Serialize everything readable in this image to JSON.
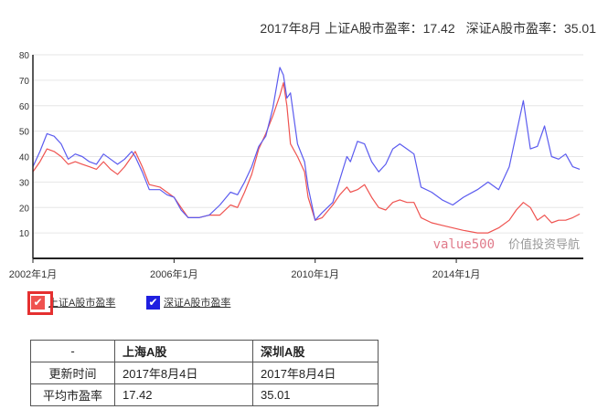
{
  "headline": {
    "sh_text": "2017年8月 上证A股市盈率：17.42",
    "sz_text": "深证A股市盈率：35.01"
  },
  "chart_data": {
    "type": "line",
    "x_ticks": [
      "2002年1月",
      "2006年1月",
      "2010年1月",
      "2014年1月"
    ],
    "x_tick_years": [
      2002,
      2006,
      2010,
      2014
    ],
    "xlim": [
      2002.0,
      2017.6
    ],
    "ylim": [
      0,
      80
    ],
    "y_ticks": [
      10,
      20,
      30,
      40,
      50,
      60,
      70,
      80
    ],
    "watermark_brand": "value500",
    "watermark_text": "价值投资导航",
    "colors": {
      "sh": "#ef5350",
      "sz": "#5b5bef",
      "axis": "#222222",
      "grid": "#e6e6e6"
    },
    "series": [
      {
        "name": "上证A股市盈率",
        "key": "sh",
        "points": [
          [
            2002.0,
            34
          ],
          [
            2002.2,
            38
          ],
          [
            2002.4,
            43
          ],
          [
            2002.6,
            42
          ],
          [
            2002.8,
            40
          ],
          [
            2003.0,
            37
          ],
          [
            2003.2,
            38
          ],
          [
            2003.4,
            37
          ],
          [
            2003.6,
            36
          ],
          [
            2003.8,
            35
          ],
          [
            2004.0,
            38
          ],
          [
            2004.2,
            35
          ],
          [
            2004.4,
            33
          ],
          [
            2004.6,
            36
          ],
          [
            2004.8,
            40
          ],
          [
            2004.9,
            42
          ],
          [
            2005.1,
            36
          ],
          [
            2005.3,
            29
          ],
          [
            2005.6,
            28
          ],
          [
            2005.8,
            26
          ],
          [
            2006.0,
            24
          ],
          [
            2006.2,
            20
          ],
          [
            2006.4,
            16
          ],
          [
            2006.7,
            16
          ],
          [
            2007.0,
            17
          ],
          [
            2007.3,
            17
          ],
          [
            2007.6,
            21
          ],
          [
            2007.8,
            20
          ],
          [
            2008.0,
            26
          ],
          [
            2008.2,
            33
          ],
          [
            2008.4,
            43
          ],
          [
            2008.6,
            49
          ],
          [
            2008.8,
            56
          ],
          [
            2009.0,
            64
          ],
          [
            2009.1,
            69
          ],
          [
            2009.2,
            60
          ],
          [
            2009.3,
            45
          ],
          [
            2009.5,
            40
          ],
          [
            2009.7,
            34
          ],
          [
            2009.8,
            24
          ],
          [
            2010.0,
            15
          ],
          [
            2010.2,
            16
          ],
          [
            2010.5,
            21
          ],
          [
            2010.7,
            25
          ],
          [
            2010.9,
            28
          ],
          [
            2011.0,
            26
          ],
          [
            2011.2,
            27
          ],
          [
            2011.4,
            29
          ],
          [
            2011.6,
            24
          ],
          [
            2011.8,
            20
          ],
          [
            2012.0,
            19
          ],
          [
            2012.2,
            22
          ],
          [
            2012.4,
            23
          ],
          [
            2012.6,
            22
          ],
          [
            2012.8,
            22
          ],
          [
            2013.0,
            16
          ],
          [
            2013.3,
            14
          ],
          [
            2013.6,
            13
          ],
          [
            2013.9,
            12
          ],
          [
            2014.2,
            11
          ],
          [
            2014.6,
            10
          ],
          [
            2014.9,
            10
          ],
          [
            2015.2,
            12
          ],
          [
            2015.5,
            15
          ],
          [
            2015.7,
            19
          ],
          [
            2015.9,
            22
          ],
          [
            2016.1,
            20
          ],
          [
            2016.3,
            15
          ],
          [
            2016.5,
            17
          ],
          [
            2016.7,
            14
          ],
          [
            2016.9,
            15
          ],
          [
            2017.1,
            15
          ],
          [
            2017.3,
            16
          ],
          [
            2017.5,
            17.42
          ]
        ]
      },
      {
        "name": "深证A股市盈率",
        "key": "sz",
        "points": [
          [
            2002.0,
            36
          ],
          [
            2002.2,
            42
          ],
          [
            2002.4,
            49
          ],
          [
            2002.6,
            48
          ],
          [
            2002.8,
            45
          ],
          [
            2003.0,
            39
          ],
          [
            2003.2,
            41
          ],
          [
            2003.4,
            40
          ],
          [
            2003.6,
            38
          ],
          [
            2003.8,
            37
          ],
          [
            2004.0,
            41
          ],
          [
            2004.2,
            39
          ],
          [
            2004.4,
            37
          ],
          [
            2004.6,
            39
          ],
          [
            2004.8,
            42
          ],
          [
            2004.9,
            40
          ],
          [
            2005.1,
            34
          ],
          [
            2005.3,
            27
          ],
          [
            2005.6,
            27
          ],
          [
            2005.8,
            25
          ],
          [
            2006.0,
            24
          ],
          [
            2006.2,
            19
          ],
          [
            2006.4,
            16
          ],
          [
            2006.7,
            16
          ],
          [
            2007.0,
            17
          ],
          [
            2007.3,
            21
          ],
          [
            2007.6,
            26
          ],
          [
            2007.8,
            25
          ],
          [
            2008.0,
            30
          ],
          [
            2008.2,
            36
          ],
          [
            2008.4,
            44
          ],
          [
            2008.6,
            48
          ],
          [
            2008.8,
            59
          ],
          [
            2009.0,
            75
          ],
          [
            2009.1,
            72
          ],
          [
            2009.2,
            63
          ],
          [
            2009.3,
            65
          ],
          [
            2009.5,
            45
          ],
          [
            2009.7,
            38
          ],
          [
            2009.8,
            28
          ],
          [
            2010.0,
            15
          ],
          [
            2010.2,
            18
          ],
          [
            2010.5,
            22
          ],
          [
            2010.7,
            31
          ],
          [
            2010.9,
            40
          ],
          [
            2011.0,
            38
          ],
          [
            2011.2,
            46
          ],
          [
            2011.4,
            45
          ],
          [
            2011.6,
            38
          ],
          [
            2011.8,
            34
          ],
          [
            2012.0,
            37
          ],
          [
            2012.2,
            43
          ],
          [
            2012.4,
            45
          ],
          [
            2012.6,
            43
          ],
          [
            2012.8,
            41
          ],
          [
            2013.0,
            28
          ],
          [
            2013.3,
            26
          ],
          [
            2013.6,
            23
          ],
          [
            2013.9,
            21
          ],
          [
            2014.2,
            24
          ],
          [
            2014.6,
            27
          ],
          [
            2014.9,
            30
          ],
          [
            2015.2,
            27
          ],
          [
            2015.5,
            36
          ],
          [
            2015.7,
            49
          ],
          [
            2015.9,
            62
          ],
          [
            2016.1,
            43
          ],
          [
            2016.3,
            44
          ],
          [
            2016.5,
            52
          ],
          [
            2016.7,
            40
          ],
          [
            2016.9,
            39
          ],
          [
            2017.1,
            41
          ],
          [
            2017.3,
            36
          ],
          [
            2017.5,
            35.01
          ]
        ]
      }
    ]
  },
  "legend": [
    {
      "key": "sh",
      "label": "上证A股市盈率",
      "checked": true,
      "highlighted": true
    },
    {
      "key": "sz",
      "label": "深证A股市盈率",
      "checked": true,
      "highlighted": false
    }
  ],
  "table": {
    "header": [
      "-",
      "上海A股",
      "深圳A股"
    ],
    "rows": [
      [
        "更新时间",
        "2017年8月4日",
        "2017年8月4日"
      ],
      [
        "平均市盈率",
        "17.42",
        "35.01"
      ]
    ]
  }
}
